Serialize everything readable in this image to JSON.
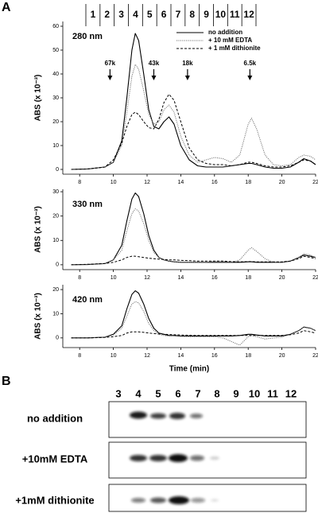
{
  "panel_a": {
    "label": "A",
    "fractions": [
      "1",
      "2",
      "3",
      "4",
      "5",
      "6",
      "7",
      "8",
      "9",
      "10",
      "11",
      "12"
    ]
  },
  "chart_data": [
    {
      "type": "line",
      "title": "280 nm",
      "ylabel": "ABS (x 10⁻³)",
      "x": [
        7.5,
        8.5,
        9.5,
        10,
        10.5,
        10.8,
        11.1,
        11.3,
        11.5,
        11.8,
        12.1,
        12.4,
        12.7,
        13,
        13.3,
        13.6,
        14,
        14.5,
        15,
        15.5,
        16,
        16.5,
        17,
        17.5,
        18,
        18.2,
        18.5,
        19,
        19.5,
        20,
        20.5,
        21,
        21.3,
        21.7,
        22
      ],
      "series": [
        {
          "name": "no addition",
          "color": "#000000",
          "dash": "solid",
          "values": [
            0,
            0.2,
            1,
            3,
            12,
            30,
            50,
            57,
            54,
            40,
            25,
            18,
            17,
            20,
            22,
            19,
            10,
            4,
            1.5,
            1,
            1,
            1,
            1.5,
            2,
            2.5,
            2.5,
            2,
            1,
            0.5,
            0.5,
            1,
            3,
            4.5,
            3.5,
            2
          ]
        },
        {
          "name": "+ 10 mM EDTA",
          "color": "#777777",
          "dash": "dotted",
          "values": [
            0,
            0.2,
            1,
            3,
            10,
            24,
            39,
            44,
            42,
            33,
            23,
            19,
            20,
            25,
            27,
            24,
            14,
            6,
            3,
            4,
            5,
            4.5,
            3,
            6,
            19,
            21.5,
            17,
            6,
            2,
            1.5,
            2,
            5,
            6,
            5.5,
            4
          ]
        },
        {
          "name": "+ 1 mM dithionite",
          "color": "#000000",
          "dash": "dashed",
          "values": [
            0,
            0.2,
            1,
            4,
            11,
            18,
            23,
            24,
            23,
            20,
            17.5,
            17,
            21,
            28,
            31.5,
            29,
            20,
            9,
            4,
            2.5,
            2,
            2,
            1.5,
            2,
            3,
            3,
            2.5,
            1.5,
            1,
            1,
            1.5,
            3,
            4,
            3.5,
            2
          ]
        }
      ],
      "legend": true,
      "annotations": [
        {
          "label": "67k",
          "x": 9.8
        },
        {
          "label": "43k",
          "x": 12.4
        },
        {
          "label": "18k",
          "x": 14.4
        },
        {
          "label": "6.5k",
          "x": 18.1
        }
      ],
      "xlim": [
        7,
        22
      ],
      "xticks": [
        8,
        10,
        12,
        14,
        16,
        18,
        20,
        22
      ],
      "ylim": [
        -2,
        62
      ],
      "yticks": [
        0,
        10,
        20,
        30,
        40,
        50,
        60
      ]
    },
    {
      "type": "line",
      "title": "330 nm",
      "ylabel": "ABS (x 10⁻³)",
      "x": [
        7.5,
        8.5,
        9.5,
        10,
        10.5,
        10.8,
        11.1,
        11.3,
        11.5,
        11.8,
        12.1,
        12.4,
        12.7,
        13,
        13.3,
        13.6,
        14,
        14.5,
        15,
        15.5,
        16,
        16.5,
        17,
        17.5,
        18,
        18.2,
        18.5,
        19,
        19.5,
        20,
        20.5,
        21,
        21.3,
        21.7,
        22
      ],
      "series": [
        {
          "color": "#000000",
          "dash": "solid",
          "values": [
            0,
            0.1,
            0.5,
            2,
            8,
            18,
            27,
            29.5,
            28,
            21,
            12,
            6,
            3,
            2,
            1.5,
            1.2,
            1,
            1,
            1,
            1,
            1,
            1,
            1,
            1,
            1.2,
            1.2,
            1,
            1,
            1,
            1,
            1.5,
            3,
            4,
            3.5,
            3
          ]
        },
        {
          "color": "#777777",
          "dash": "dotted",
          "values": [
            0,
            0.1,
            0.5,
            2,
            6,
            14,
            21,
            23,
            22,
            17,
            10,
            5,
            3,
            2,
            1.5,
            1.3,
            1,
            1,
            1,
            1,
            1.5,
            1.5,
            1,
            2,
            6,
            7,
            5.5,
            2.5,
            1,
            1,
            1.5,
            3,
            4.5,
            4,
            3
          ]
        },
        {
          "color": "#000000",
          "dash": "dashed",
          "values": [
            0,
            0.2,
            0.5,
            1,
            2,
            3,
            3.5,
            3.5,
            3.3,
            3,
            2.7,
            2.5,
            2.3,
            2.2,
            2,
            2,
            1.8,
            1.7,
            1.5,
            1.5,
            1.5,
            1.5,
            1.3,
            1.2,
            1.3,
            1.3,
            1.2,
            1.2,
            1.2,
            1.2,
            1.5,
            2.5,
            3.5,
            3,
            2.5
          ]
        }
      ],
      "legend": false,
      "xlim": [
        7,
        22
      ],
      "xticks": [
        8,
        10,
        12,
        14,
        16,
        18,
        20,
        22
      ],
      "ylim": [
        -2,
        31
      ],
      "yticks": [
        0,
        10,
        20,
        30
      ]
    },
    {
      "type": "line",
      "title": "420 nm",
      "ylabel": "ABS (x 10⁻³)",
      "xlabel": "Time (min)",
      "x": [
        7.5,
        8.5,
        9.5,
        10,
        10.5,
        10.8,
        11.1,
        11.3,
        11.5,
        11.8,
        12.1,
        12.4,
        12.7,
        13,
        13.3,
        13.6,
        14,
        14.5,
        15,
        15.5,
        16,
        16.5,
        17,
        17.5,
        18,
        18.2,
        18.5,
        19,
        19.5,
        20,
        20.5,
        21,
        21.3,
        21.7,
        22
      ],
      "series": [
        {
          "color": "#000000",
          "dash": "solid",
          "values": [
            0,
            0,
            0.3,
            1.5,
            5,
            12,
            18,
            19.5,
            18.5,
            14,
            8,
            4,
            2,
            1.5,
            1,
            1,
            0.8,
            0.8,
            0.8,
            0.8,
            0.8,
            0.8,
            0.8,
            1,
            1.5,
            1.5,
            1.2,
            0.8,
            0.8,
            0.8,
            1.5,
            3,
            4.5,
            4,
            3
          ]
        },
        {
          "color": "#777777",
          "dash": "dotted",
          "values": [
            0,
            0,
            0.3,
            1.2,
            4,
            9,
            14,
            15,
            14.5,
            11,
            6,
            3,
            1.5,
            1,
            0.8,
            0.8,
            0.6,
            0.5,
            0.5,
            0.5,
            0.5,
            0,
            -1.5,
            -3,
            0.5,
            1,
            0.5,
            -0.5,
            0,
            0.3,
            1.5,
            3,
            4.5,
            4,
            3
          ]
        },
        {
          "color": "#000000",
          "dash": "dashed",
          "values": [
            0,
            0,
            0.2,
            0.5,
            1,
            2,
            2.5,
            2.5,
            2.5,
            2.3,
            2,
            1.8,
            1.6,
            1.5,
            1.4,
            1.3,
            1.2,
            1.1,
            1,
            1,
            1,
            1,
            1,
            1,
            1,
            1,
            1,
            1,
            1,
            1,
            1.3,
            2,
            3,
            2.5,
            2
          ]
        }
      ],
      "legend": false,
      "xlim": [
        7,
        22
      ],
      "xticks": [
        8,
        10,
        12,
        14,
        16,
        18,
        20,
        22
      ],
      "ylim": [
        -4,
        22
      ],
      "yticks": [
        0,
        10,
        20
      ]
    }
  ],
  "panel_b": {
    "label": "B",
    "lanes": [
      "3",
      "4",
      "5",
      "6",
      "7",
      "8",
      "9",
      "10",
      "11",
      "12"
    ],
    "rows": [
      "no addition",
      "+10mM EDTA",
      "+1mM dithionite"
    ]
  }
}
